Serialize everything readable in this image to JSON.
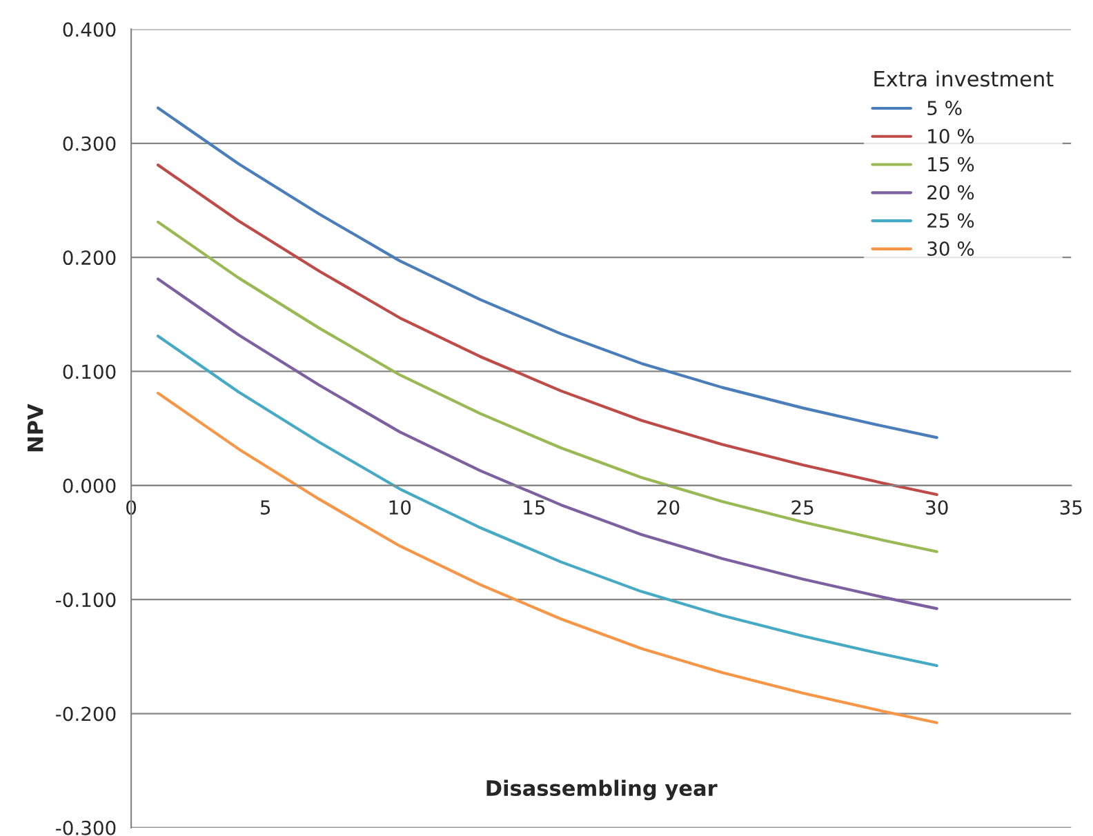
{
  "chart_data": {
    "type": "line",
    "xlabel": "Disassembling year",
    "ylabel": "NPV",
    "legend_title": "Extra investment",
    "legend": "top right",
    "grid": "y",
    "marker": "none",
    "line_style": "solid",
    "x": [
      1,
      4,
      7,
      10,
      13,
      16,
      19,
      22,
      25,
      28,
      30
    ],
    "series": [
      {
        "name": "5 %",
        "color": "#4a7ebb",
        "values": [
          0.331,
          0.282,
          0.238,
          0.197,
          0.163,
          0.133,
          0.107,
          0.086,
          0.068,
          0.052,
          0.042
        ]
      },
      {
        "name": "10 %",
        "color": "#be4b48",
        "values": [
          0.281,
          0.232,
          0.188,
          0.147,
          0.113,
          0.083,
          0.057,
          0.036,
          0.018,
          0.002,
          -0.008
        ]
      },
      {
        "name": "15 %",
        "color": "#98b954",
        "values": [
          0.231,
          0.182,
          0.138,
          0.097,
          0.063,
          0.033,
          0.007,
          -0.014,
          -0.032,
          -0.048,
          -0.058
        ]
      },
      {
        "name": "20 %",
        "color": "#7d60a0",
        "values": [
          0.181,
          0.132,
          0.088,
          0.047,
          0.013,
          -0.017,
          -0.043,
          -0.064,
          -0.082,
          -0.098,
          -0.108
        ]
      },
      {
        "name": "25 %",
        "color": "#46aac5",
        "values": [
          0.131,
          0.082,
          0.038,
          -0.003,
          -0.037,
          -0.067,
          -0.093,
          -0.114,
          -0.132,
          -0.148,
          -0.158
        ]
      },
      {
        "name": "30 %",
        "color": "#f79646",
        "values": [
          0.081,
          0.032,
          -0.012,
          -0.053,
          -0.087,
          -0.117,
          -0.143,
          -0.164,
          -0.182,
          -0.198,
          -0.208
        ]
      }
    ],
    "xlim": [
      0,
      35
    ],
    "xticks": [
      0,
      5,
      10,
      15,
      20,
      25,
      30,
      35
    ],
    "ylim": [
      -0.3,
      0.4
    ],
    "yticks": [
      {
        "value": -0.3,
        "label": "-0.300"
      },
      {
        "value": -0.2,
        "label": "-0.200"
      },
      {
        "value": -0.1,
        "label": "-0.100"
      },
      {
        "value": 0,
        "label": "0.000"
      },
      {
        "value": 0.1,
        "label": "0.100"
      },
      {
        "value": 0.2,
        "label": "0.200"
      },
      {
        "value": 0.3,
        "label": "0.300"
      },
      {
        "value": 0.4,
        "label": "0.400"
      }
    ]
  }
}
